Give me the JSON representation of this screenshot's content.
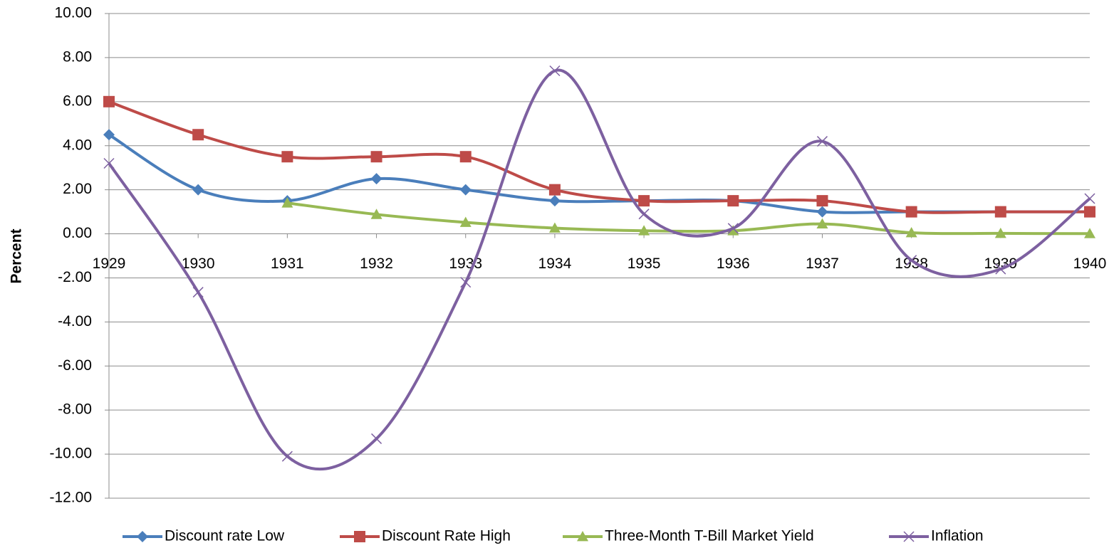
{
  "chart_data": {
    "type": "line",
    "y_label": "Percent",
    "x": [
      1929,
      1930,
      1931,
      1932,
      1933,
      1934,
      1935,
      1936,
      1937,
      1938,
      1939,
      1940
    ],
    "xlim": [
      1929,
      1940
    ],
    "xticks": [
      1929,
      1930,
      1931,
      1932,
      1933,
      1934,
      1935,
      1936,
      1937,
      1938,
      1939,
      1940
    ],
    "ylim": [
      -12,
      10
    ],
    "yticks": [
      {
        "value": -12,
        "label": "-12.00"
      },
      {
        "value": -10,
        "label": "-10.00"
      },
      {
        "value": -8,
        "label": "-8.00"
      },
      {
        "value": -6,
        "label": "-6.00"
      },
      {
        "value": -4,
        "label": "-4.00"
      },
      {
        "value": -2,
        "label": "-2.00"
      },
      {
        "value": 0,
        "label": "0.00"
      },
      {
        "value": 2,
        "label": "2.00"
      },
      {
        "value": 4,
        "label": "4.00"
      },
      {
        "value": 6,
        "label": "6.00"
      },
      {
        "value": 8,
        "label": "8.00"
      },
      {
        "value": 10,
        "label": "10.00"
      }
    ],
    "grid": true,
    "smooth": true,
    "legend": "bottom",
    "series": [
      {
        "name": "Discount rate Low",
        "color": "#4a7ebb",
        "marker": "diamond",
        "values": [
          4.5,
          2,
          1.5,
          2.5,
          2,
          1.5,
          1.5,
          1.5,
          1,
          1,
          1,
          1
        ]
      },
      {
        "name": "Discount Rate High",
        "color": "#be4b48",
        "marker": "square",
        "values": [
          6,
          4.5,
          3.5,
          3.5,
          3.5,
          2,
          1.5,
          1.5,
          1.5,
          1,
          1,
          1
        ]
      },
      {
        "name": "Three-Month T-Bill Market Yield",
        "color": "#98b954",
        "marker": "triangle",
        "values": [
          null,
          null,
          1.4,
          0.88,
          0.52,
          0.26,
          0.14,
          0.14,
          0.45,
          0.05,
          0.02,
          0.01
        ]
      },
      {
        "name": "Inflation",
        "color": "#7d60a0",
        "marker": "x",
        "values": [
          3.2,
          -2.65,
          -10.1,
          -9.3,
          -2.2,
          7.4,
          0.9,
          0.25,
          4.2,
          -1.2,
          -1.6,
          1.6
        ]
      }
    ]
  }
}
